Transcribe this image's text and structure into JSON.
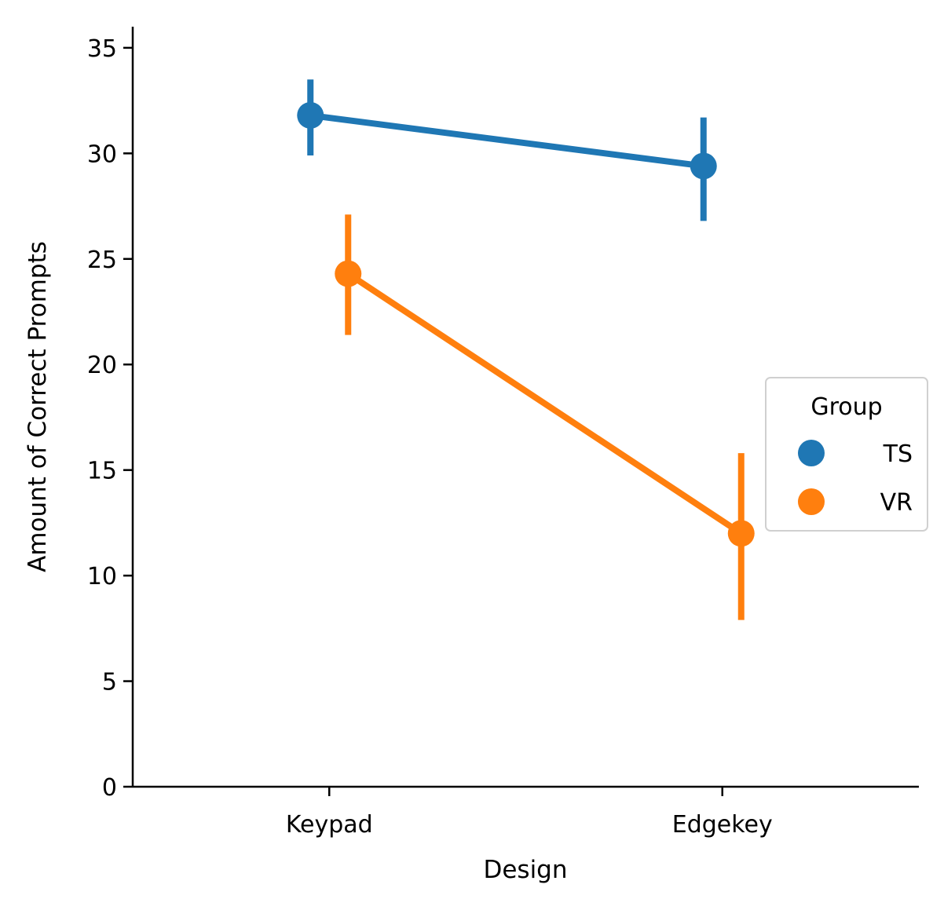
{
  "chart_data": {
    "type": "line",
    "title": "",
    "xlabel": "Design",
    "ylabel": "Amount of Correct Prompts",
    "categories": [
      "Keypad",
      "Edgekey"
    ],
    "ylim": [
      0,
      36
    ],
    "yticks": [
      0,
      5,
      10,
      15,
      20,
      25,
      30,
      35
    ],
    "grid": false,
    "legend": {
      "title": "Group",
      "placement": "center-right"
    },
    "series": [
      {
        "name": "TS",
        "color": "#1f77b4",
        "values": [
          31.8,
          29.4
        ],
        "ci_low": [
          29.9,
          26.8
        ],
        "ci_high": [
          33.5,
          31.7
        ]
      },
      {
        "name": "VR",
        "color": "#ff7f0e",
        "values": [
          24.3,
          12.0
        ],
        "ci_low": [
          21.4,
          7.9
        ],
        "ci_high": [
          27.1,
          15.8
        ]
      }
    ]
  }
}
